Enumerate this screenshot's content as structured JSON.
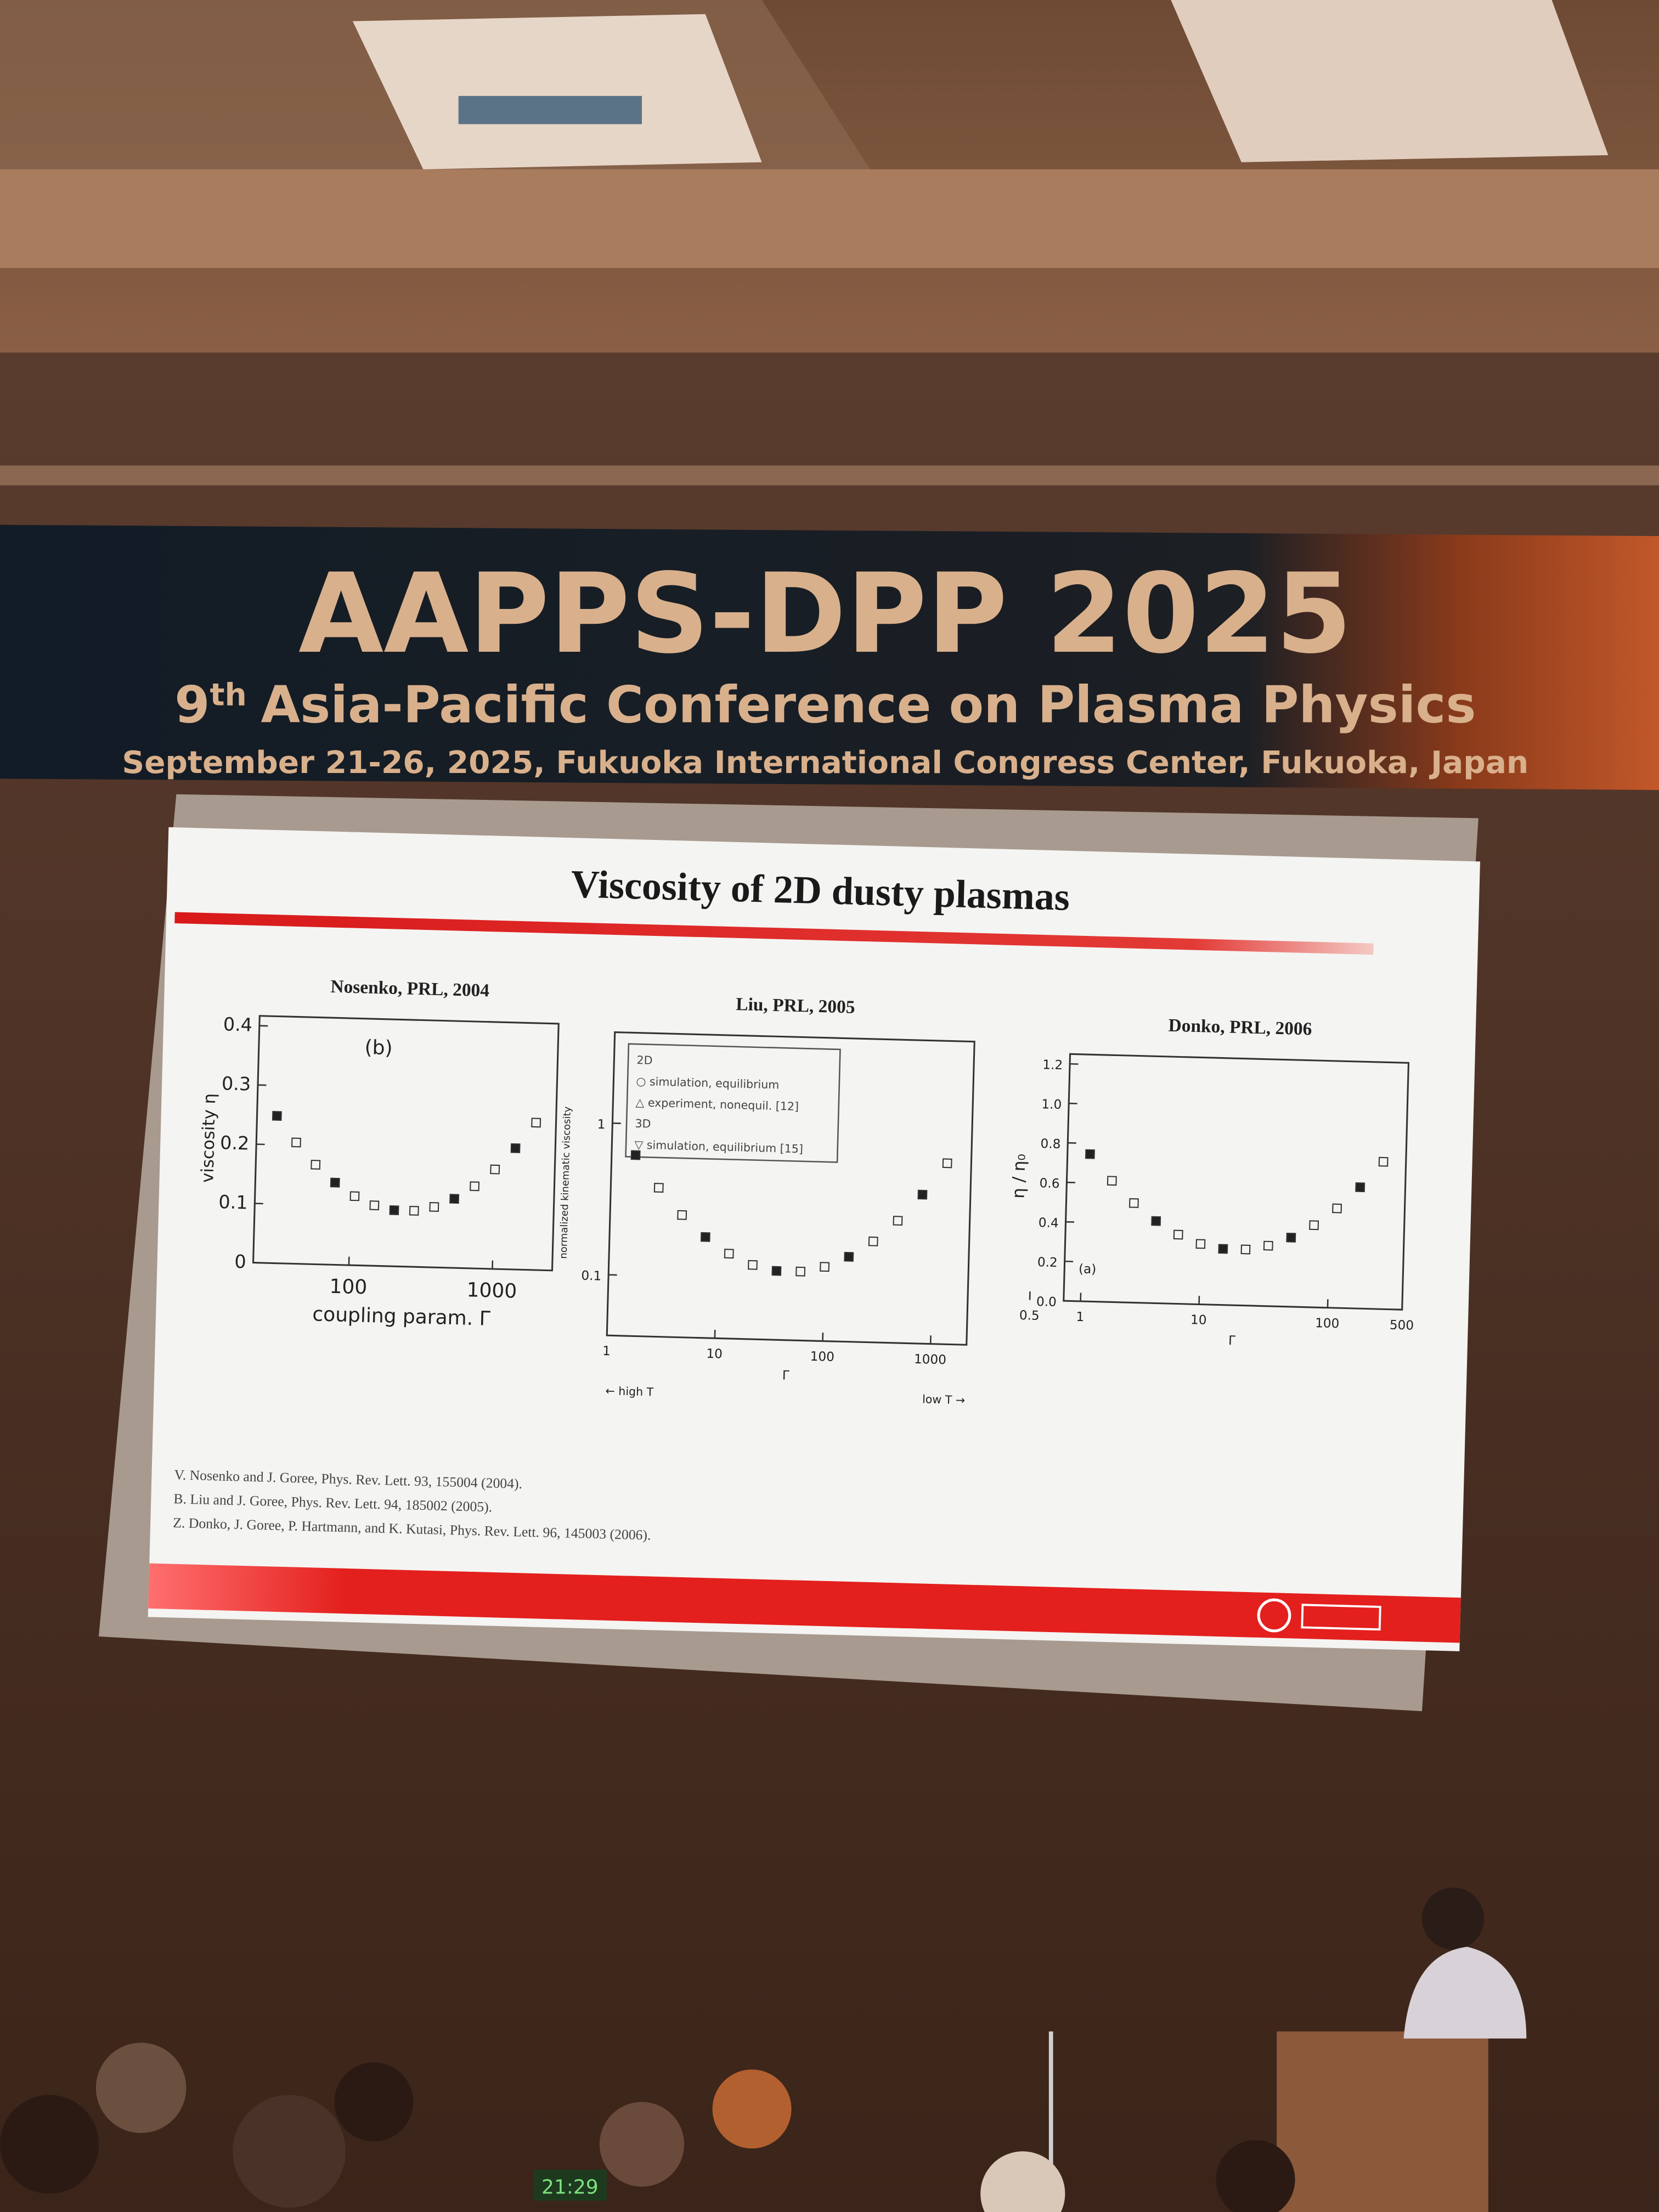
{
  "banner": {
    "title": "AAPPS-DPP 2025",
    "edition": "9",
    "edition_suffix": "th",
    "subtitle": "Asia-Pacific Conference on Plasma Physics",
    "dates": "September 21-26, 2025, Fukuoka International Congress Center, Fukuoka, Japan"
  },
  "slide": {
    "title": "Viscosity of 2D dusty plasmas",
    "panels": [
      {
        "title": "Nosenko, PRL, 2004",
        "label": "(b)",
        "ylabel": "viscosity η",
        "xlabel": "coupling param. Γ",
        "yticks": [
          "0",
          "0.1",
          "0.2",
          "0.3",
          "0.4"
        ],
        "xticks": [
          "100",
          "1000"
        ]
      },
      {
        "title": "Liu, PRL, 2005",
        "ylabel": "normalized kinematic viscosity",
        "xlabel": "Γ",
        "left_note": "← high T",
        "right_note": "low T →",
        "legend": [
          "2D",
          "○ simulation, equilibrium",
          "△ experiment, nonequil. [12]",
          "3D",
          "▽ simulation, equilibrium [15]"
        ],
        "yticks": [
          "1",
          "0.1"
        ],
        "xticks": [
          "1",
          "10",
          "100",
          "1000"
        ]
      },
      {
        "title": "Donko, PRL, 2006",
        "label": "(a)",
        "ylabel": "η / η₀",
        "xlabel": "Γ",
        "yticks": [
          "0.0",
          "0.2",
          "0.4",
          "0.6",
          "0.8",
          "1.0",
          "1.2"
        ],
        "xticks": [
          "0.5",
          "1",
          "10",
          "100",
          "500"
        ]
      }
    ],
    "references": [
      "V. Nosenko and J. Goree, Phys. Rev. Lett. 93, 155004 (2004).",
      "B. Liu and J. Goree, Phys. Rev. Lett. 94, 185002 (2005).",
      "Z. Donko, J. Goree, P. Hartmann, and K. Kutasi, Phys. Rev. Lett. 96, 145003 (2006)."
    ]
  },
  "clock": "21:29"
}
